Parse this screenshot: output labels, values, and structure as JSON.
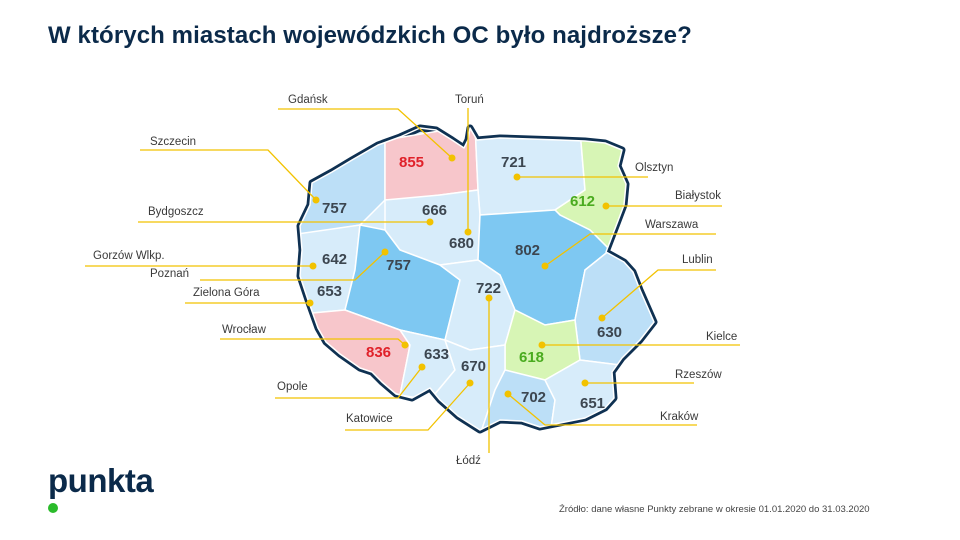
{
  "title": "W których miastach wojewódzkich OC było najdroższe?",
  "source": "Źródło: dane własne Punkty zebrane w okresie 01.01.2020 do 31.03.2020",
  "logo": "punkta",
  "colors": {
    "title": "#0b2a4a",
    "outline": "#0f3152",
    "leader_line": "#f2c200",
    "dot": "#f2c200",
    "value_default": "#3c4650",
    "value_high": "#e0212a",
    "value_low": "#4aab1f",
    "region_high": "#f7c6cb",
    "region_low": "#d7f5b5",
    "region_light": "#d7ecfa",
    "region_mid": "#bcdff7",
    "region_dark": "#7ec8f2",
    "logo_dot": "#2bbb2b"
  },
  "cities": [
    {
      "name": "Szczecin",
      "value": "757",
      "level": "default"
    },
    {
      "name": "Gdańsk",
      "value": "855",
      "level": "high"
    },
    {
      "name": "Toruń",
      "value": "680",
      "level": "default"
    },
    {
      "name": "Olsztyn",
      "value": "721",
      "level": "default"
    },
    {
      "name": "Białystok",
      "value": "612",
      "level": "low"
    },
    {
      "name": "Bydgoszcz",
      "value": "666",
      "level": "default"
    },
    {
      "name": "Warszawa",
      "value": "802",
      "level": "default"
    },
    {
      "name": "Gorzów Wlkp.",
      "value": "642",
      "level": "default"
    },
    {
      "name": "Poznań",
      "value": "757",
      "level": "default"
    },
    {
      "name": "Lublin",
      "value": "630",
      "level": "default"
    },
    {
      "name": "Zielona Góra",
      "value": "653",
      "level": "default"
    },
    {
      "name": "Łódź",
      "value": "722",
      "level": "default"
    },
    {
      "name": "Wrocław",
      "value": "836",
      "level": "high"
    },
    {
      "name": "Kielce",
      "value": "618",
      "level": "low"
    },
    {
      "name": "Opole",
      "value": "633",
      "level": "default"
    },
    {
      "name": "Katowice",
      "value": "670",
      "level": "default"
    },
    {
      "name": "Kraków",
      "value": "702",
      "level": "default"
    },
    {
      "name": "Rzeszów",
      "value": "651",
      "level": "default"
    }
  ]
}
